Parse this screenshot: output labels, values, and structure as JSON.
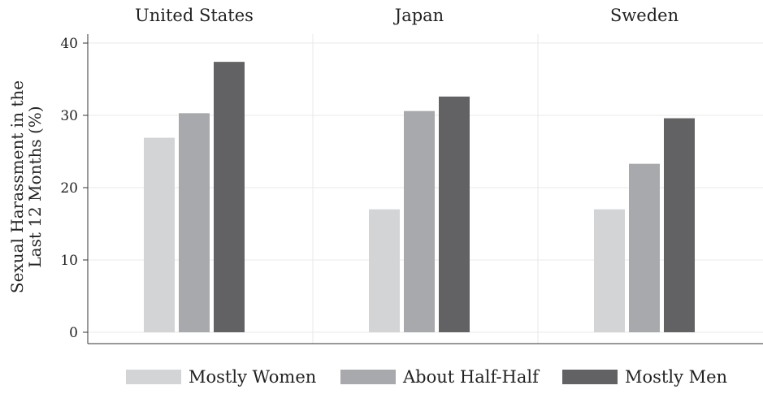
{
  "chart_data": {
    "type": "bar",
    "panels": [
      "United States",
      "Japan",
      "Sweden"
    ],
    "ylabel_lines": [
      "Sexual Harassment in the",
      "Last 12 Months (%)"
    ],
    "ylim": [
      0,
      40
    ],
    "yticks": [
      "0",
      "10",
      "20",
      "30",
      "40"
    ],
    "grid": true,
    "legend_position": "bottom",
    "series": [
      {
        "name": "Mostly Women",
        "color": "#d3d4d6",
        "values": [
          26.9,
          17.0,
          17.0
        ]
      },
      {
        "name": "About Half-Half",
        "color": "#a8a9ad",
        "values": [
          30.3,
          30.6,
          23.3
        ]
      },
      {
        "name": "Mostly Men",
        "color": "#626264",
        "values": [
          37.4,
          32.6,
          29.6
        ]
      }
    ]
  }
}
